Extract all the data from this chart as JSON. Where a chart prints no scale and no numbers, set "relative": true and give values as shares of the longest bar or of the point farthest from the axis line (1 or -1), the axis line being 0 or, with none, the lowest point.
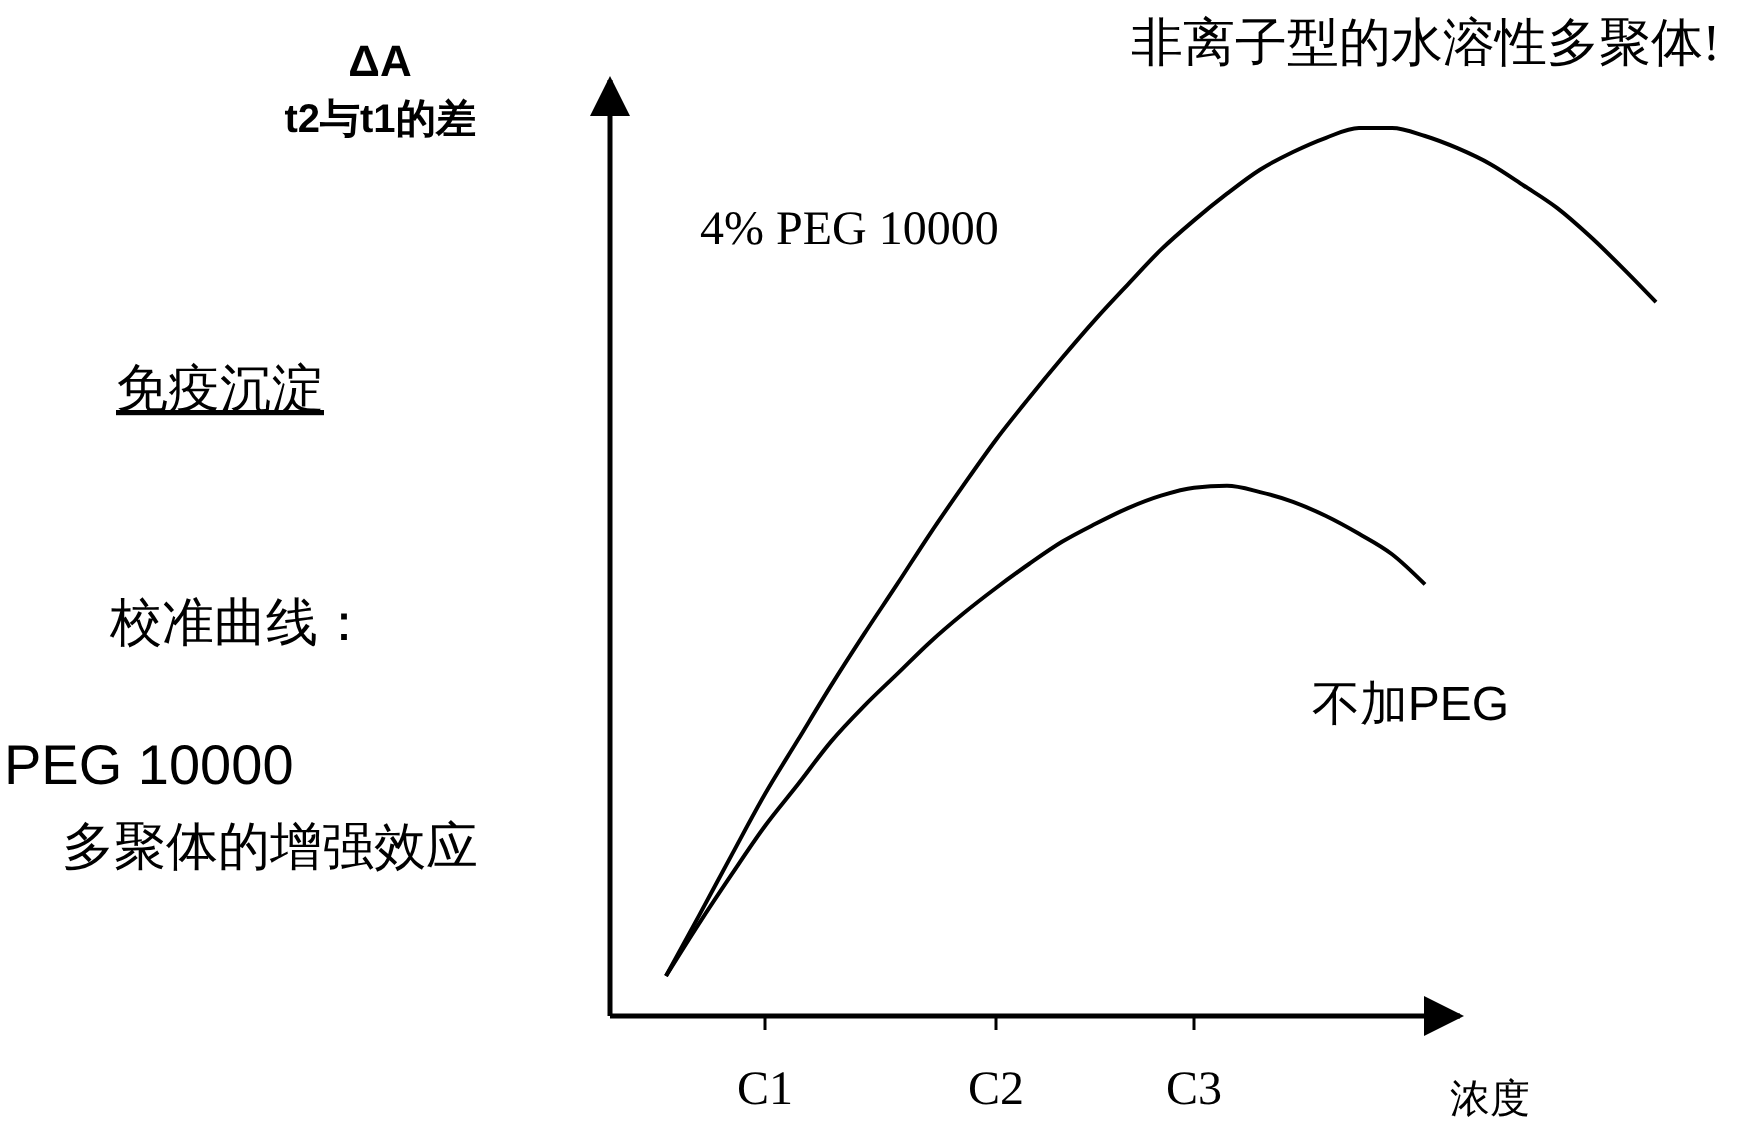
{
  "chart_data": {
    "type": "line",
    "title": "非离子型的水溶性多聚体!",
    "ylabel": "ΔA\nt2与t1的差",
    "xlabel": "浓度",
    "annotations": [
      "免疫沉淀",
      "校准曲线：",
      "PEG 10000",
      "多聚体的增强效应"
    ],
    "relative": true,
    "legend": false,
    "marker": "none",
    "line_style": "solid",
    "categories": [
      null,
      null,
      null,
      "C1",
      null,
      null,
      null,
      null,
      null,
      null,
      "C2",
      null,
      null,
      null,
      null,
      null,
      "C3",
      null,
      null,
      null,
      null,
      null,
      null,
      null,
      null,
      null,
      null,
      null,
      null,
      null,
      null
    ],
    "series": [
      {
        "name": "4% PEG 10000",
        "color": "#000000",
        "values": [
          0.045,
          0.113,
          0.182,
          0.25,
          0.311,
          0.372,
          0.43,
          0.486,
          0.543,
          0.597,
          0.649,
          0.696,
          0.741,
          0.784,
          0.824,
          0.863,
          0.896,
          0.926,
          0.953,
          0.973,
          0.989,
          1,
          1,
          0.991,
          0.977,
          0.959,
          0.935,
          0.91,
          0.878,
          0.842,
          0.804
        ]
      },
      {
        "name": "不加PEG",
        "color": "#000000",
        "values": [
          0.045,
          0.104,
          0.16,
          0.214,
          0.261,
          0.309,
          0.349,
          0.385,
          0.421,
          0.453,
          0.482,
          0.509,
          0.534,
          0.554,
          0.572,
          0.586,
          0.595,
          0.597,
          0.59,
          0.579,
          0.563,
          0.543,
          0.52,
          0.486,
          null,
          null,
          null,
          null,
          null,
          null,
          null
        ]
      }
    ]
  }
}
